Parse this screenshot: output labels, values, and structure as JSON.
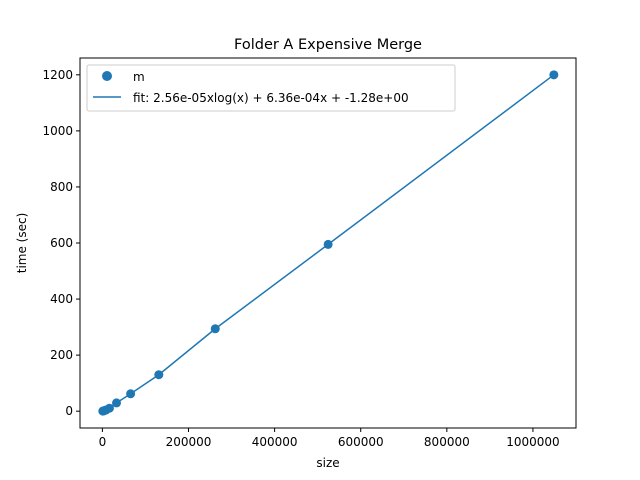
{
  "chart_data": {
    "type": "scatter",
    "title": "Folder A Expensive Merge",
    "xlabel": "size",
    "ylabel": "time (sec)",
    "xlim": [
      -52000,
      1100000
    ],
    "ylim": [
      -60,
      1260
    ],
    "xticks": [
      0,
      200000,
      400000,
      600000,
      800000,
      1000000
    ],
    "xtick_labels": [
      "0",
      "200000",
      "400000",
      "600000",
      "800000",
      "1000000"
    ],
    "yticks": [
      0,
      200,
      400,
      600,
      800,
      1000,
      1200
    ],
    "ytick_labels": [
      "0",
      "200",
      "400",
      "600",
      "800",
      "1000",
      "1200"
    ],
    "grid": false,
    "legend_position": "top-left",
    "colors": {
      "series": "#1f77b4",
      "axes": "#000000",
      "background": "#ffffff"
    },
    "series": [
      {
        "name": "m",
        "kind": "scatter",
        "x": [
          1024,
          2048,
          4096,
          8192,
          16384,
          32768,
          65536,
          131072,
          262144,
          524288,
          1048576
        ],
        "y": [
          0.2,
          0.7,
          1.8,
          4.1,
          10.5,
          29.5,
          62,
          130,
          294,
          595,
          1200
        ]
      },
      {
        "name": "fit: 2.56e-05xlog(x) + 6.36e-04x + -1.28e+00",
        "kind": "line",
        "x": [
          1024,
          2048,
          4096,
          8192,
          16384,
          32768,
          65536,
          131072,
          262144,
          524288,
          1048576
        ],
        "y": [
          0.2,
          0.7,
          1.8,
          4.1,
          10.5,
          29.5,
          62,
          130,
          294,
          595,
          1200
        ]
      }
    ]
  }
}
